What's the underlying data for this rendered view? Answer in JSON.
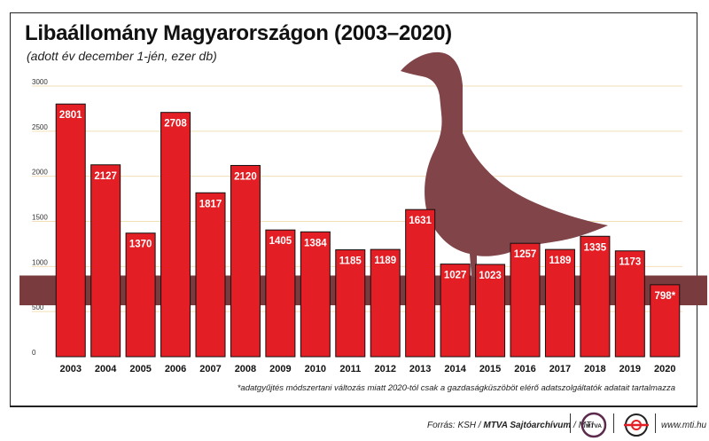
{
  "header": {
    "title": "Libaállomány Magyarországon (2003–2020)",
    "subtitle": "(adott év december 1-jén, ezer db)"
  },
  "chart_data": {
    "type": "bar",
    "title": "Libaállomány Magyarországon (2003–2020)",
    "subtitle": "(adott év december 1-jén, ezer db)",
    "categories": [
      "2003",
      "2004",
      "2005",
      "2006",
      "2007",
      "2008",
      "2009",
      "2010",
      "2011",
      "2012",
      "2013",
      "2014",
      "2015",
      "2016",
      "2017",
      "2018",
      "2019",
      "2020"
    ],
    "values": [
      2801,
      2127,
      1370,
      2708,
      1817,
      2120,
      1405,
      1384,
      1185,
      1189,
      1631,
      1027,
      1023,
      1257,
      1189,
      1335,
      1173,
      798
    ],
    "labels": [
      "2801",
      "2127",
      "1370",
      "2708",
      "1817",
      "2120",
      "1405",
      "1384",
      "1185",
      "1189",
      "1631",
      "1027",
      "1023",
      "1257",
      "1189",
      "1335",
      "1173",
      "798*"
    ],
    "yticks": [
      "0",
      "500",
      "1000",
      "1500",
      "2000",
      "2500",
      "3000"
    ],
    "ylim": [
      0,
      3000
    ],
    "grid": true,
    "xlabel": "",
    "ylabel": "",
    "bar_color": "#e31e24",
    "band_color": "#7a3b3e",
    "goose_color": "#804449",
    "footnote": "*adatgyűjtés módszertani változás miatt 2020-tól csak a gazdaságküszöböt elérő adatszolgáltatók adatait tartalmazza"
  },
  "footer": {
    "source_prefix": "Forrás: KSH /",
    "source_bold": "MTVA Sajtóarchívum",
    "source_suffix": "/ MTI",
    "logo_text": "MTVA",
    "url": "www.mti.hu"
  }
}
